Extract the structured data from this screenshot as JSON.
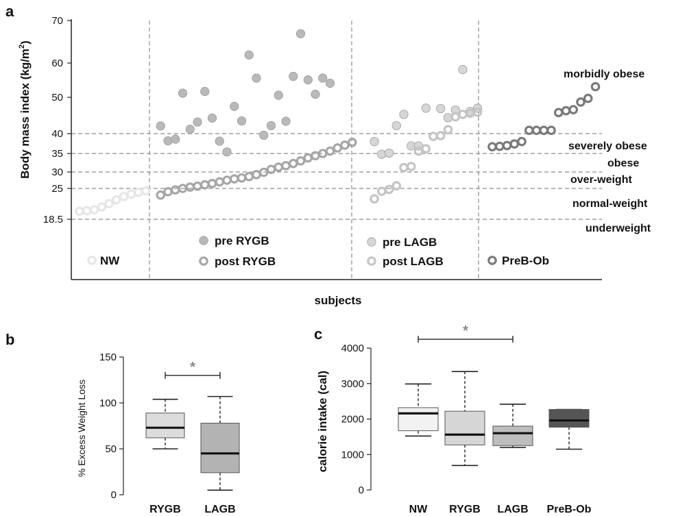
{
  "panel_labels": {
    "a": "a",
    "b": "b",
    "c": "c"
  },
  "colors": {
    "nw": "#e6e6e6",
    "pre_rygb": "#b9b9b9",
    "post_rygb": "#a6a6a6",
    "pre_lagb": "#d6d6d6",
    "post_lagb": "#c4c4c4",
    "preb_ob": "#7a7a7a",
    "box_rygb_b": "#dcdcdc",
    "box_lagb_b": "#b3b3b3",
    "box_nw_c": "#f2f2f2",
    "box_rygb_c": "#d6d6d6",
    "box_lagb_c": "#bdbdbd",
    "box_preb_c": "#555555"
  },
  "chart_data": [
    {
      "id": "a",
      "type": "scatter",
      "title": "",
      "xlabel": "subjects",
      "ylabel": "Body mass index (kg/m",
      "ylabel_sup": "2",
      "ylabel_close": ")",
      "y_ticks": [
        18.5,
        25,
        30,
        35,
        40,
        50,
        60,
        70
      ],
      "y_tick_labels": [
        "18.5",
        "25",
        "30",
        "35",
        "40",
        "50",
        "60",
        "70"
      ],
      "ylim": [
        18.5,
        70
      ],
      "threshold_lines": [
        18.5,
        25,
        30,
        35,
        40
      ],
      "categories": [
        {
          "label": "morbidly  obese"
        },
        {
          "label": "severely obese"
        },
        {
          "label": "obese"
        },
        {
          "label": "over-weight"
        },
        {
          "label": "normal-weight"
        },
        {
          "label": "underweight"
        }
      ],
      "groups": [
        {
          "legend": [
            "NW"
          ]
        },
        {
          "legend": [
            "pre RYGB",
            "post RYGB"
          ]
        },
        {
          "legend": [
            "pre LAGB",
            "post LAGB"
          ]
        },
        {
          "legend": [
            "PreB-Ob"
          ]
        }
      ],
      "series": [
        {
          "name": "NW",
          "style": "ring",
          "color_key": "nw",
          "x": [
            1,
            2,
            3,
            4,
            5,
            6,
            7,
            8,
            9,
            10
          ],
          "y": [
            20.2,
            20.3,
            20.5,
            21.1,
            21.8,
            22.6,
            23.3,
            23.8,
            24.2,
            24.5
          ]
        },
        {
          "name": "pre RYGB",
          "style": "filled",
          "color_key": "pre_rygb",
          "x": [
            12,
            13,
            14,
            15,
            16,
            17,
            18,
            19,
            20,
            21,
            22,
            23,
            24,
            25,
            26,
            27,
            28,
            29,
            30,
            31,
            32,
            33,
            34,
            35,
            36,
            37,
            38
          ],
          "y": [
            42.1,
            38.2,
            38.6,
            51.2,
            41.2,
            43.2,
            51.7,
            44.3,
            38.1,
            35.4,
            47.5,
            43.5,
            61.9,
            55.6,
            39.6,
            42.2,
            50.6,
            43.4,
            56.1,
            66.9,
            55.1,
            50.9,
            55.6,
            54.1,
            null,
            null,
            null
          ]
        },
        {
          "name": "post RYGB",
          "style": "ring",
          "color_key": "post_rygb",
          "x": [
            12,
            13,
            14,
            15,
            16,
            17,
            18,
            19,
            20,
            21,
            22,
            23,
            24,
            25,
            26,
            27,
            28,
            29,
            30,
            31,
            32,
            33,
            34,
            35,
            36,
            37,
            38
          ],
          "y": [
            23.6,
            24.3,
            24.7,
            25.0,
            25.4,
            25.7,
            26.1,
            26.5,
            27.0,
            27.5,
            27.9,
            28.2,
            28.6,
            29.2,
            29.9,
            30.7,
            31.3,
            31.7,
            32.3,
            33.0,
            33.8,
            34.4,
            35.0,
            35.6,
            36.4,
            37.1,
            37.8
          ]
        },
        {
          "name": "pre LAGB",
          "style": "filled",
          "color_key": "pre_lagb",
          "x": [
            41,
            42,
            43,
            44,
            45,
            46,
            47,
            48,
            49,
            50,
            51,
            52,
            53,
            54,
            55
          ],
          "y": [
            38.0,
            34.8,
            35.1,
            42.2,
            45.3,
            36.9,
            36.9,
            47.0,
            null,
            46.9,
            44.4,
            46.5,
            58.1,
            46.1,
            47.0
          ]
        },
        {
          "name": "post LAGB",
          "style": "ring",
          "color_key": "post_lagb",
          "x": [
            41,
            42,
            43,
            44,
            45,
            46,
            47,
            48,
            49,
            50,
            51,
            52,
            53,
            54,
            55
          ],
          "y": [
            22.8,
            24.4,
            24.8,
            25.8,
            31.2,
            31.5,
            35.6,
            36.2,
            39.3,
            39.5,
            41.1,
            44.6,
            45.3,
            45.6,
            45.9
          ]
        },
        {
          "name": "PreB-Ob",
          "style": "ring",
          "color_key": "preb_ob",
          "x": [
            57,
            58,
            59,
            60,
            61,
            62,
            63,
            64,
            65,
            66,
            67,
            68,
            69,
            70,
            71,
            72
          ],
          "y": [
            36.7,
            36.8,
            37.0,
            37.4,
            38.0,
            40.9,
            40.9,
            40.9,
            40.9,
            45.8,
            46.3,
            46.6,
            48.7,
            49.7,
            53.1,
            null
          ]
        }
      ]
    },
    {
      "id": "b",
      "type": "box",
      "title": "",
      "xlabel": "",
      "ylabel": "% Excess Weight Loss",
      "categories": [
        "RYGB",
        "LAGB"
      ],
      "y_ticks": [
        0,
        50,
        100,
        150
      ],
      "ylim": [
        0,
        150
      ],
      "boxes": [
        {
          "category": "RYGB",
          "whisker_low": 50,
          "q1": 62,
          "median": 73,
          "q3": 89,
          "whisker_high": 104,
          "color_key": "box_rygb_b"
        },
        {
          "category": "LAGB",
          "whisker_low": 5,
          "q1": 24,
          "median": 45,
          "q3": 78,
          "whisker_high": 107,
          "color_key": "box_lagb_b"
        }
      ],
      "significance": {
        "from": "RYGB",
        "to": "LAGB",
        "y": 130,
        "label": "*"
      }
    },
    {
      "id": "c",
      "type": "box",
      "title": "",
      "xlabel": "",
      "ylabel": "calorie intake (cal)",
      "categories": [
        "NW",
        "RYGB",
        "LAGB",
        "PreB-Ob"
      ],
      "y_ticks": [
        0,
        1000,
        2000,
        3000,
        4000
      ],
      "ylim": [
        0,
        4000
      ],
      "boxes": [
        {
          "category": "NW",
          "whisker_low": 1520,
          "q1": 1670,
          "median": 2160,
          "q3": 2320,
          "whisker_high": 2990,
          "color_key": "box_nw_c"
        },
        {
          "category": "RYGB",
          "whisker_low": 690,
          "q1": 1270,
          "median": 1560,
          "q3": 2220,
          "whisker_high": 3340,
          "color_key": "box_rygb_c"
        },
        {
          "category": "LAGB",
          "whisker_low": 1200,
          "q1": 1250,
          "median": 1600,
          "q3": 1800,
          "whisker_high": 2420,
          "color_key": "box_lagb_c"
        },
        {
          "category": "PreB-Ob",
          "whisker_low": 1150,
          "q1": 1770,
          "median": 1960,
          "q3": 2270,
          "whisker_high": 2270,
          "color_key": "box_preb_c"
        }
      ],
      "significance": {
        "from": "NW",
        "to": "LAGB",
        "y": 4250,
        "label": "*"
      }
    }
  ]
}
